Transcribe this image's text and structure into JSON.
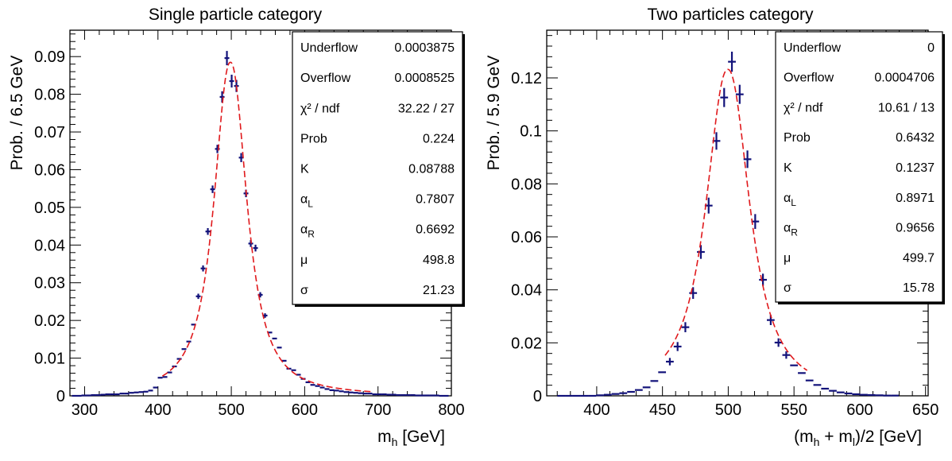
{
  "colors": {
    "points": "#12127a",
    "fit": "#e0191c",
    "frame": "#000000"
  },
  "chart_data": [
    {
      "type": "scatter",
      "title": "Single particle category",
      "xlabel": "m",
      "xlabel_sub": "h",
      "xlabel_tail": " [GeV]",
      "ylabel": "Prob. / 6.5 GeV",
      "xlim": [
        280,
        800
      ],
      "ylim": [
        0,
        0.097
      ],
      "xticks": [
        300,
        400,
        500,
        600,
        700,
        800
      ],
      "xtick_labels": [
        "300",
        "400",
        "500",
        "600",
        "700",
        "800"
      ],
      "yticks": [
        0,
        0.01,
        0.02,
        0.03,
        0.04,
        0.05,
        0.06,
        0.07,
        0.08,
        0.09
      ],
      "ytick_labels": [
        "0",
        "0.01",
        "0.02",
        "0.03",
        "0.04",
        "0.05",
        "0.06",
        "0.07",
        "0.08",
        "0.09"
      ],
      "bin_width": 6.5,
      "series": [
        {
          "x": [
            286,
            292.5,
            299,
            305.5,
            312,
            318.5,
            325,
            331.5,
            338,
            344.5,
            351,
            357.5,
            364,
            370.5,
            377,
            383.5,
            390,
            396.5,
            403,
            409.5,
            416,
            422.5,
            429,
            435.5,
            442,
            448.5,
            455,
            461.5,
            468,
            474.5,
            481,
            487.5,
            494,
            500.5,
            507,
            513.5,
            520,
            526.5,
            533,
            539.5,
            546,
            552.5,
            559,
            565.5,
            572,
            578.5,
            585,
            591.5,
            598,
            604.5,
            611,
            617.5,
            624,
            630.5,
            637,
            643.5,
            650,
            656.5,
            663,
            669.5,
            676,
            682.5,
            689,
            695.5,
            702,
            708.5,
            715,
            721.5,
            728,
            734.5,
            741,
            747.5,
            754,
            760.5,
            767,
            773.5,
            780,
            786.5,
            793
          ],
          "y": [
            0,
            0,
            0.0001,
            0.0001,
            0.0002,
            0.0002,
            0.0003,
            0.0004,
            0.0004,
            0.0004,
            0.0006,
            0.0006,
            0.0008,
            0.0009,
            0.001,
            0.0011,
            0.0014,
            0.0022,
            0.0048,
            0.005,
            0.0062,
            0.0078,
            0.0098,
            0.0124,
            0.0144,
            0.0189,
            0.0264,
            0.0338,
            0.0436,
            0.0548,
            0.0655,
            0.0793,
            0.0896,
            0.0835,
            0.0822,
            0.0632,
            0.0537,
            0.0404,
            0.0392,
            0.0268,
            0.0213,
            0.0168,
            0.0152,
            0.0128,
            0.0093,
            0.0072,
            0.0068,
            0.0056,
            0.0045,
            0.0036,
            0.0029,
            0.0026,
            0.0022,
            0.0018,
            0.0015,
            0.0014,
            0.0012,
            0.001,
            0.0009,
            0.0008,
            0.0007,
            0.0006,
            0.0006,
            0.0004,
            0.0004,
            0.0004,
            0.0003,
            0.0003,
            0.0002,
            0.0002,
            0.0002,
            0.0002,
            0.0001,
            0.0001,
            0.0001,
            0.0001,
            0.0001,
            0,
            0
          ],
          "yerr": [
            0,
            0,
            0,
            0,
            0,
            0,
            0,
            0,
            0,
            0,
            0,
            0,
            0,
            0,
            0,
            0,
            0,
            0,
            0,
            0,
            0,
            0,
            0,
            0,
            0,
            0,
            0.0007,
            0.0008,
            0.0009,
            0.001,
            0.0011,
            0.0015,
            0.0019,
            0.0017,
            0.0016,
            0.0012,
            0.001,
            0.0009,
            0.0009,
            0.0007,
            0.0006,
            0,
            0,
            0,
            0,
            0,
            0,
            0,
            0,
            0,
            0,
            0,
            0,
            0,
            0,
            0,
            0,
            0,
            0,
            0,
            0,
            0,
            0,
            0,
            0,
            0,
            0,
            0,
            0,
            0,
            0,
            0,
            0,
            0,
            0,
            0,
            0,
            0,
            0
          ]
        }
      ],
      "fit": {
        "type": "crystal-ball-like",
        "mu": 498.8,
        "sigma": 21.23,
        "K": 0.08788,
        "alpha_L": 0.7807,
        "alpha_R": 0.6692,
        "peak": 0.0885,
        "x_range": [
          406,
          690
        ]
      },
      "stats": [
        {
          "label": "Underflow",
          "value": "0.0003875"
        },
        {
          "label": "Overflow",
          "value": "0.0008525"
        },
        {
          "label": "χ² / ndf",
          "value": "32.22 / 27"
        },
        {
          "label": "Prob",
          "value": "0.224"
        },
        {
          "label": "K",
          "value": "0.08788"
        },
        {
          "label": "α_L",
          "value": "0.7807"
        },
        {
          "label": "α_R",
          "value": "0.6692"
        },
        {
          "label": "μ",
          "value": "498.8"
        },
        {
          "label": "σ",
          "value": "21.23"
        }
      ]
    },
    {
      "type": "scatter",
      "title": "Two particles category",
      "xlabel": "(m",
      "xlabel_sub": "h",
      "xlabel_mid": " + m",
      "xlabel_sub2": "l",
      "xlabel_tail": ")/2 [GeV]",
      "ylabel": "Prob. / 5.9 GeV",
      "xlim": [
        362,
        652
      ],
      "ylim": [
        0,
        0.138
      ],
      "xticks": [
        400,
        450,
        500,
        550,
        600,
        650
      ],
      "xtick_labels": [
        "400",
        "450",
        "500",
        "550",
        "600",
        "650"
      ],
      "yticks": [
        0,
        0.02,
        0.04,
        0.06,
        0.08,
        0.1,
        0.12
      ],
      "ytick_labels": [
        "0",
        "0.02",
        "0.04",
        "0.06",
        "0.08",
        "0.1",
        "0.12"
      ],
      "bin_width": 5.9,
      "series": [
        {
          "x": [
            373,
            378.9,
            384.8,
            390.7,
            396.6,
            402.5,
            408.4,
            414.3,
            420.2,
            426.1,
            432,
            437.9,
            443.8,
            449.7,
            455.6,
            461.5,
            467.4,
            473.3,
            479.2,
            485.1,
            491,
            496.9,
            502.8,
            508.7,
            514.6,
            520.5,
            526.4,
            532.3,
            538.2,
            544.1,
            550,
            555.9,
            561.8,
            567.7,
            573.6,
            579.5,
            585.4,
            591.3,
            597.2,
            603.1,
            609,
            614.9,
            620.8,
            626.7
          ],
          "y": [
            0,
            0,
            0,
            0,
            0,
            0.0002,
            0.0004,
            0.0007,
            0.001,
            0.0015,
            0.0022,
            0.0032,
            0.0056,
            0.0089,
            0.0129,
            0.0186,
            0.0259,
            0.0388,
            0.0543,
            0.0718,
            0.0962,
            0.1126,
            0.1261,
            0.1138,
            0.0893,
            0.0658,
            0.0438,
            0.0286,
            0.0201,
            0.0154,
            0.0115,
            0.0086,
            0.0058,
            0.0041,
            0.0027,
            0.0019,
            0.0013,
            0.0009,
            0.0006,
            0.0004,
            0.0003,
            0.0002,
            0.0001,
            0.0001
          ],
          "yerr": [
            0,
            0,
            0,
            0,
            0,
            0,
            0,
            0,
            0,
            0,
            0,
            0,
            0,
            0,
            0.0014,
            0.0017,
            0.0019,
            0.0022,
            0.0026,
            0.003,
            0.0033,
            0.0036,
            0.0038,
            0.0036,
            0.0033,
            0.0028,
            0.0023,
            0.0019,
            0.0016,
            0.0014,
            0,
            0,
            0,
            0,
            0,
            0,
            0,
            0,
            0,
            0,
            0,
            0,
            0,
            0
          ]
        }
      ],
      "fit": {
        "type": "crystal-ball-like",
        "mu": 499.7,
        "sigma": 15.78,
        "K": 0.1237,
        "alpha_L": 0.8971,
        "alpha_R": 0.9656,
        "peak": 0.1232,
        "x_range": [
          452,
          560
        ]
      },
      "stats": [
        {
          "label": "Underflow",
          "value": "0"
        },
        {
          "label": "Overflow",
          "value": "0.0004706"
        },
        {
          "label": "χ² / ndf",
          "value": "10.61 / 13"
        },
        {
          "label": "Prob",
          "value": "0.6432"
        },
        {
          "label": "K",
          "value": "0.1237"
        },
        {
          "label": "α_L",
          "value": "0.8971"
        },
        {
          "label": "α_R",
          "value": "0.9656"
        },
        {
          "label": "μ",
          "value": "499.7"
        },
        {
          "label": "σ",
          "value": "15.78"
        }
      ]
    }
  ]
}
